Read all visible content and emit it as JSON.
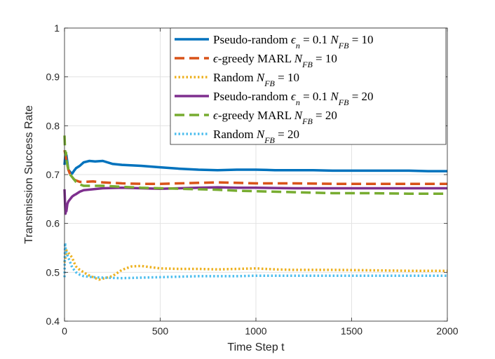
{
  "chart_data": {
    "type": "line",
    "title": "",
    "xlabel": "Time Step t",
    "ylabel": "Transmission Success Rate",
    "xlim": [
      0,
      2000
    ],
    "ylim": [
      0.4,
      1.0
    ],
    "xticks": [
      0,
      500,
      1000,
      1500,
      2000
    ],
    "yticks": [
      0.4,
      0.5,
      0.6,
      0.7,
      0.8,
      0.9,
      1.0
    ],
    "xtick_labels": [
      "0",
      "500",
      "1000",
      "1500",
      "2000"
    ],
    "ytick_labels": [
      "0.4",
      "0.5",
      "0.6",
      "0.7",
      "0.8",
      "0.9",
      "1"
    ],
    "grid": true,
    "legend_position": "top-right",
    "series": [
      {
        "name": "Pseudo-random ϵn = 0.1 NFB = 10",
        "legend": {
          "pre": "Pseudo-random ",
          "eps": "ϵ",
          "eps_sub": "n",
          "mid": " = 0.1 ",
          "n": "N",
          "n_sub": "FB",
          "post": " = 10"
        },
        "color": "#0072BD",
        "style": "solid",
        "x": [
          0,
          5,
          10,
          15,
          20,
          30,
          40,
          50,
          60,
          80,
          100,
          130,
          160,
          200,
          250,
          300,
          400,
          500,
          600,
          700,
          800,
          900,
          1000,
          1100,
          1200,
          1300,
          1400,
          1500,
          1600,
          1700,
          1800,
          1900,
          2000
        ],
        "y": [
          0.72,
          0.745,
          0.74,
          0.725,
          0.71,
          0.705,
          0.702,
          0.708,
          0.713,
          0.718,
          0.725,
          0.728,
          0.727,
          0.728,
          0.722,
          0.72,
          0.718,
          0.715,
          0.712,
          0.71,
          0.709,
          0.71,
          0.71,
          0.709,
          0.709,
          0.709,
          0.708,
          0.708,
          0.708,
          0.708,
          0.708,
          0.707,
          0.707
        ]
      },
      {
        "name": "ϵ-greedy MARL NFB = 10",
        "legend": {
          "pre": "",
          "eps": "ϵ",
          "eps_sub": "",
          "mid": "-greedy MARL ",
          "n": "N",
          "n_sub": "FB",
          "post": " = 10"
        },
        "color": "#D95319",
        "style": "dashed",
        "x": [
          0,
          5,
          10,
          15,
          20,
          30,
          40,
          50,
          60,
          80,
          100,
          150,
          200,
          300,
          400,
          500,
          600,
          700,
          800,
          900,
          1000,
          1200,
          1400,
          1600,
          1800,
          2000
        ],
        "y": [
          0.75,
          0.74,
          0.73,
          0.72,
          0.71,
          0.7,
          0.695,
          0.69,
          0.688,
          0.685,
          0.685,
          0.686,
          0.684,
          0.682,
          0.681,
          0.681,
          0.682,
          0.683,
          0.684,
          0.683,
          0.682,
          0.682,
          0.681,
          0.681,
          0.681,
          0.681
        ]
      },
      {
        "name": "Random NFB = 10",
        "legend": {
          "pre": "Random ",
          "eps": "",
          "eps_sub": "",
          "mid": "",
          "n": "N",
          "n_sub": "FB",
          "post": " = 10"
        },
        "color": "#EDB120",
        "style": "dotted",
        "x": [
          0,
          5,
          10,
          20,
          30,
          40,
          50,
          60,
          80,
          100,
          120,
          150,
          180,
          200,
          250,
          300,
          350,
          400,
          500,
          600,
          700,
          800,
          900,
          1000,
          1100,
          1200,
          1400,
          1600,
          1800,
          2000
        ],
        "y": [
          0.52,
          0.53,
          0.545,
          0.54,
          0.535,
          0.53,
          0.52,
          0.512,
          0.505,
          0.5,
          0.495,
          0.49,
          0.485,
          0.487,
          0.492,
          0.505,
          0.512,
          0.513,
          0.508,
          0.507,
          0.507,
          0.506,
          0.507,
          0.508,
          0.506,
          0.505,
          0.505,
          0.504,
          0.503,
          0.503
        ]
      },
      {
        "name": "Pseudo-random ϵn = 0.1 NFB = 20",
        "legend": {
          "pre": "Pseudo-random ",
          "eps": "ϵ",
          "eps_sub": "n",
          "mid": " = 0.1 ",
          "n": "N",
          "n_sub": "FB",
          "post": " = 20"
        },
        "color": "#7E2F8E",
        "style": "solid",
        "x": [
          0,
          3,
          5,
          8,
          10,
          15,
          20,
          30,
          40,
          50,
          60,
          80,
          100,
          150,
          200,
          300,
          400,
          500,
          600,
          700,
          800,
          900,
          1000,
          1200,
          1400,
          1600,
          1800,
          2000
        ],
        "y": [
          0.67,
          0.64,
          0.62,
          0.63,
          0.625,
          0.64,
          0.645,
          0.65,
          0.655,
          0.658,
          0.66,
          0.665,
          0.668,
          0.67,
          0.672,
          0.673,
          0.672,
          0.671,
          0.672,
          0.673,
          0.674,
          0.673,
          0.673,
          0.672,
          0.672,
          0.672,
          0.672,
          0.672
        ]
      },
      {
        "name": "ϵ-greedy MARL NFB = 20",
        "legend": {
          "pre": "",
          "eps": "ϵ",
          "eps_sub": "",
          "mid": "-greedy MARL ",
          "n": "N",
          "n_sub": "FB",
          "post": " = 20"
        },
        "color": "#77AC30",
        "style": "dashed",
        "x": [
          0,
          3,
          5,
          8,
          10,
          15,
          20,
          30,
          40,
          50,
          60,
          80,
          100,
          150,
          200,
          300,
          400,
          500,
          600,
          700,
          800,
          900,
          1000,
          1200,
          1400,
          1600,
          1800,
          2000
        ],
        "y": [
          0.78,
          0.75,
          0.74,
          0.745,
          0.73,
          0.72,
          0.71,
          0.7,
          0.695,
          0.69,
          0.685,
          0.68,
          0.677,
          0.677,
          0.677,
          0.675,
          0.673,
          0.672,
          0.671,
          0.67,
          0.669,
          0.667,
          0.666,
          0.664,
          0.662,
          0.662,
          0.661,
          0.661
        ]
      },
      {
        "name": "Random NFB = 20",
        "legend": {
          "pre": "Random ",
          "eps": "",
          "eps_sub": "",
          "mid": "",
          "n": "N",
          "n_sub": "FB",
          "post": " = 20"
        },
        "color": "#4DBEEE",
        "style": "dotted",
        "x": [
          0,
          3,
          5,
          8,
          10,
          15,
          20,
          30,
          40,
          50,
          60,
          80,
          100,
          150,
          200,
          300,
          400,
          500,
          600,
          700,
          800,
          900,
          1000,
          1200,
          1400,
          1600,
          1800,
          2000
        ],
        "y": [
          0.49,
          0.56,
          0.55,
          0.545,
          0.54,
          0.535,
          0.53,
          0.52,
          0.51,
          0.505,
          0.5,
          0.495,
          0.492,
          0.49,
          0.489,
          0.488,
          0.489,
          0.49,
          0.491,
          0.492,
          0.492,
          0.492,
          0.493,
          0.493,
          0.493,
          0.493,
          0.493,
          0.493
        ]
      }
    ]
  }
}
